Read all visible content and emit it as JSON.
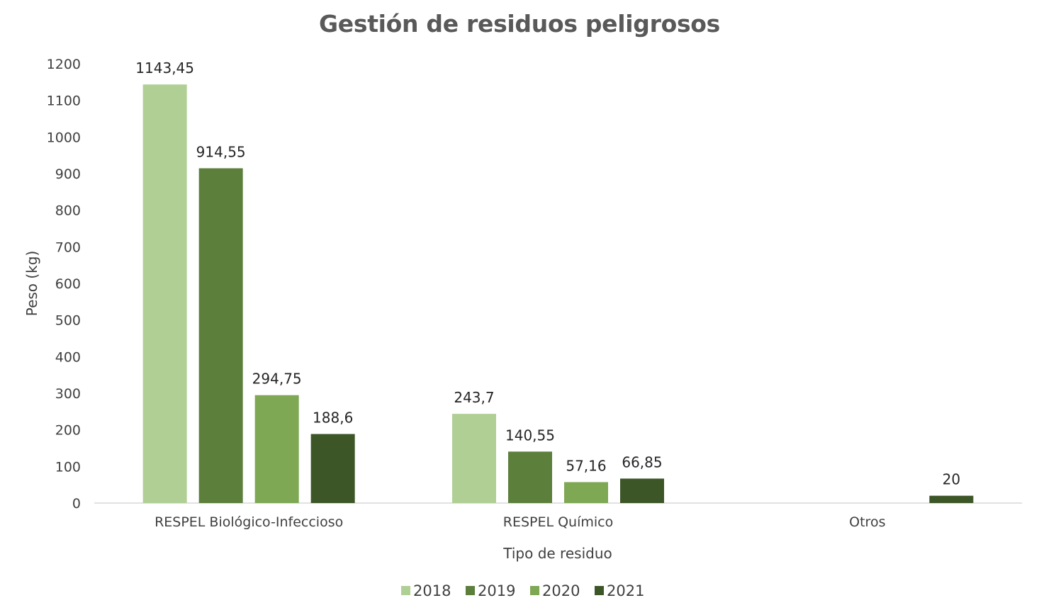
{
  "chart_data": {
    "type": "bar",
    "title": "Gestión de residuos peligrosos",
    "xlabel": "Tipo de residuo",
    "ylabel": "Peso (kg)",
    "ylim": [
      0,
      1200
    ],
    "yticks": [
      0,
      100,
      200,
      300,
      400,
      500,
      600,
      700,
      800,
      900,
      1000,
      1100,
      1200
    ],
    "categories": [
      "RESPEL Biológico-Infeccioso",
      "RESPEL Químico",
      "Otros"
    ],
    "series": [
      {
        "name": "2018",
        "color": "#b0cf95",
        "values": [
          1143.45,
          243.7,
          null
        ],
        "labels": [
          "1143,45",
          "243,7",
          ""
        ]
      },
      {
        "name": "2019",
        "color": "#5c7f3c",
        "values": [
          914.55,
          140.55,
          null
        ],
        "labels": [
          "914,55",
          "140,55",
          ""
        ]
      },
      {
        "name": "2020",
        "color": "#7ea853",
        "values": [
          294.75,
          57.16,
          null
        ],
        "labels": [
          "294,75",
          "57,16",
          ""
        ]
      },
      {
        "name": "2021",
        "color": "#3d5628",
        "values": [
          188.6,
          66.85,
          20
        ],
        "labels": [
          "188,6",
          "66,85",
          "20"
        ]
      }
    ],
    "grid": false,
    "legend_position": "bottom"
  }
}
